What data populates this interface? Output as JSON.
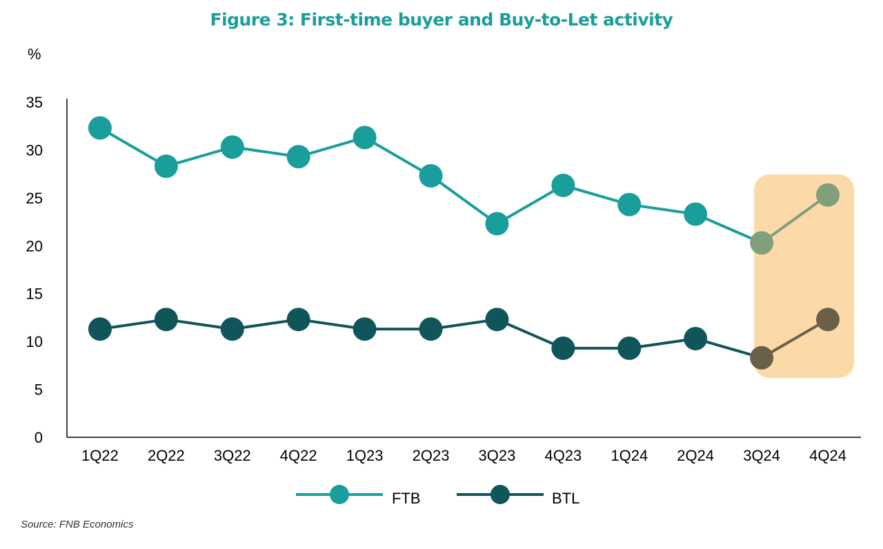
{
  "chart_data": {
    "type": "line",
    "title": "Figure 3: First-time buyer and Buy-to-Let activity",
    "ylabel": "%",
    "xlabel": "",
    "categories": [
      "1Q22",
      "2Q22",
      "3Q22",
      "4Q22",
      "1Q23",
      "2Q23",
      "3Q23",
      "4Q23",
      "1Q24",
      "2Q24",
      "3Q24",
      "4Q24"
    ],
    "ylim": [
      0,
      35
    ],
    "yticks": [
      0,
      5,
      10,
      15,
      20,
      25,
      30,
      35
    ],
    "grid": false,
    "legend_position": "bottom",
    "series": [
      {
        "name": "FTB",
        "color": "#1a9e9b",
        "values": [
          32.3,
          28.3,
          30.3,
          29.3,
          31.3,
          27.3,
          22.3,
          26.3,
          24.3,
          23.3,
          20.3,
          25.3
        ]
      },
      {
        "name": "BTL",
        "color": "#10555a",
        "values": [
          11.3,
          12.3,
          11.3,
          12.3,
          11.3,
          11.3,
          12.3,
          9.3,
          9.3,
          10.3,
          8.3,
          12.3
        ]
      }
    ],
    "highlight": {
      "categories": [
        "3Q24",
        "4Q24"
      ],
      "color": "#fcd9a8"
    },
    "highlight_overlay_colors": {
      "FTB": "#7fa07a",
      "BTL": "#6a6048"
    }
  },
  "source": "Source: FNB Economics"
}
